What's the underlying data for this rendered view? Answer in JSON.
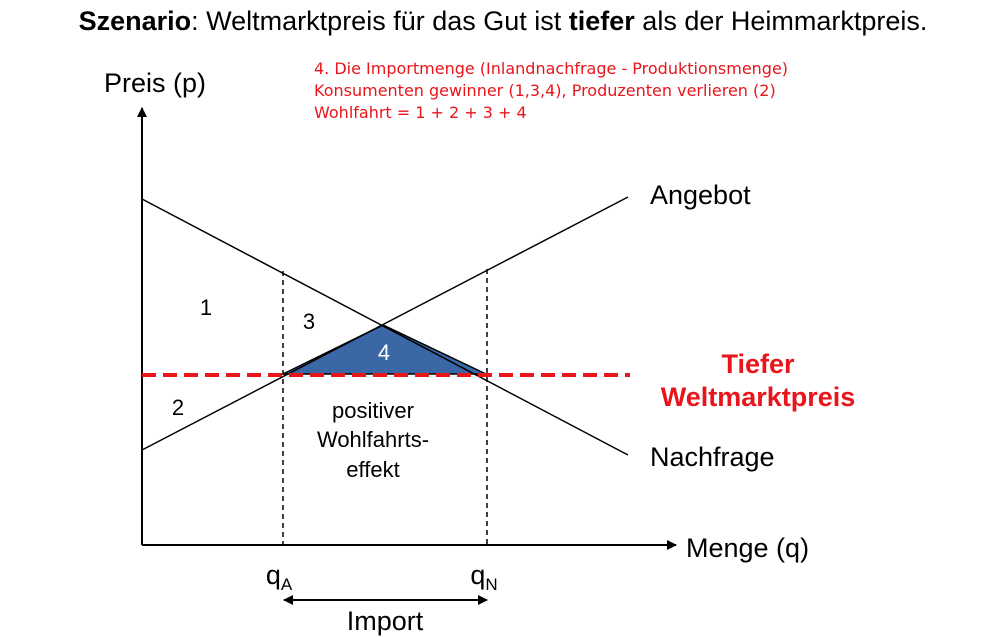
{
  "title": {
    "bold_prefix": "Szenario",
    "text_1": ": Weltmarktpreis für das Gut ist ",
    "bold_word": "tiefer",
    "text_2": " als der Heimmarktpreis."
  },
  "notes": [
    "4. Die Importmenge (Inlandnachfrage - Produktionsmenge)",
    "Konsumenten gewinner (1,3,4), Produzenten verlieren (2)",
    "Wohlfahrt = 1 + 2 + 3 + 4"
  ],
  "axes": {
    "y_label": "Preis (p)",
    "x_label": "Menge (q)"
  },
  "curves": {
    "supply_label": "Angebot",
    "demand_label": "Nachfrage"
  },
  "world_price": {
    "label_line1": "Tiefer",
    "label_line2": "Weltmarktpreis",
    "color": "#e8151b"
  },
  "areas": {
    "area1": "1",
    "area2": "2",
    "area3": "3",
    "area4": "4",
    "area4_color": "#3b67a6"
  },
  "effect_text": [
    "positiver",
    "Wohlfahrts-",
    "effekt"
  ],
  "quantities": {
    "qA_main": "q",
    "qA_sub": "A",
    "qN_main": "q",
    "qN_sub": "N"
  },
  "import_label": "Import"
}
